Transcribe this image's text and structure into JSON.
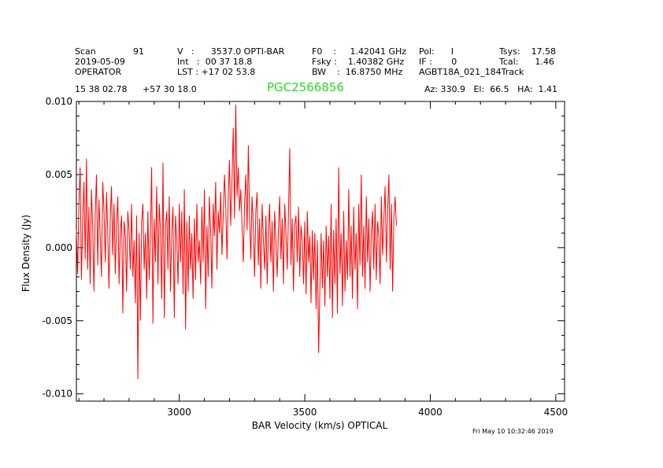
{
  "header": {
    "col1": [
      "Scan",
      "91",
      "2019-05-09",
      "OPERATOR"
    ],
    "col2": [
      "V   :      3537.0 OPTI-BAR",
      "Int   :  00 37 18.8",
      "LST : +17 02 53.8"
    ],
    "col3": [
      "F0    :     1.42041 GHz",
      "Fsky :    1.40382 GHz",
      "BW    :  16.8750 MHz"
    ],
    "col4": [
      "Pol:      I",
      "IF :       0",
      "AGBT18A_021_184Track"
    ],
    "col5": [
      "Tsys:    17.58",
      "Tcal:      1.46"
    ],
    "ra": "15 38 02.78",
    "dec": "+57 30 18.0",
    "object": "PGC2566856",
    "azel": "Az: 330.9   El:  66.5   HA:  1.41"
  },
  "timestamp": "Fri May 10 10:32:46 2019",
  "chart_data": {
    "type": "line",
    "xlabel": "BAR Velocity (km/s) OPTICAL",
    "ylabel": "Flux Density (Jy)",
    "xlim": [
      2590,
      4535
    ],
    "ylim": [
      -0.0105,
      0.01
    ],
    "xticks": [
      3000,
      3500,
      4000,
      4500
    ],
    "yticks": [
      -0.01,
      -0.005,
      0.0,
      0.005,
      0.01
    ],
    "ytick_labels": [
      "-0.010",
      "-0.005",
      "0.000",
      "0.005",
      "0.010"
    ],
    "line_color": "#ff0000",
    "series": [
      {
        "x_start": 2590,
        "x_step": 5,
        "values": [
          0.0012,
          -0.0018,
          0.0031,
          0.0055,
          -0.0022,
          0.0018,
          0.0045,
          -0.0008,
          0.0061,
          -0.0015,
          0.0028,
          -0.0025,
          0.004,
          0.0015,
          -0.003,
          0.0022,
          0.005,
          -0.0012,
          0.0033,
          0.0008,
          -0.002,
          0.0045,
          0.0025,
          -0.001,
          0.0038,
          0.0012,
          -0.0028,
          0.002,
          0.0042,
          -0.0005,
          0.003,
          -0.0018,
          0.0015,
          0.0035,
          -0.0025,
          0.001,
          0.0022,
          -0.0045,
          0.0018,
          0.0008,
          -0.003,
          0.0025,
          0.0012,
          -0.0015,
          0.003,
          -0.002,
          0.0005,
          -0.0038,
          0.0022,
          -0.009,
          0.001,
          -0.005,
          0.0018,
          0.003,
          -0.0015,
          0.001,
          -0.0035,
          0.0025,
          -0.0022,
          0.0008,
          0.0055,
          -0.0052,
          0.002,
          -0.001,
          0.0042,
          -0.0025,
          0.003,
          0.0012,
          -0.0035,
          0.0058,
          -0.0048,
          0.0015,
          0.0025,
          -0.0015,
          0.0035,
          -0.003,
          0.001,
          0.0028,
          -0.0048,
          0.0022,
          0.0005,
          -0.0025,
          0.003,
          -0.001,
          0.0025,
          -0.0032,
          0.004,
          -0.0056,
          0.0018,
          -0.003,
          0.0022,
          -0.0015,
          0.001,
          -0.0035,
          0.002,
          -0.0022,
          0.003,
          -0.001,
          0.0005,
          -0.0025,
          0.0028,
          -0.001,
          0.004,
          -0.0042,
          0.0015,
          -0.002,
          0.0035,
          0.0012,
          -0.0028,
          0.003,
          0.0008,
          0.0045,
          -0.0015,
          0.0025,
          0.001,
          0.0038,
          -0.0005,
          0.0022,
          0.005,
          0.0028,
          -0.0008,
          0.0035,
          0.006,
          0.0015,
          0.0045,
          0.0082,
          0.002,
          0.0098,
          0.0035,
          0.0055,
          0.0025,
          0.004,
          0.0015,
          -0.001,
          0.003,
          0.005,
          0.0012,
          0.007,
          0.0022,
          -0.0008,
          0.0035,
          0.0015,
          -0.002,
          0.0025,
          0.0038,
          -0.0012,
          0.002,
          -0.0028,
          0.003,
          0.0005,
          -0.0015,
          0.0022,
          -0.0025,
          0.0012,
          0.003,
          -0.001,
          0.0018,
          -0.003,
          0.0025,
          0.0005,
          -0.002,
          0.0012,
          0.0035,
          -0.0008,
          0.002,
          -0.0025,
          0.003,
          0.001,
          -0.0015,
          0.0025,
          0.0068,
          -0.0012,
          0.002,
          -0.003,
          0.0015,
          0.0022,
          -0.001,
          0.0028,
          -0.002,
          0.0015,
          0.0005,
          -0.0025,
          0.0018,
          -0.0032,
          0.0025,
          -0.001,
          0.0008,
          -0.0038,
          0.0012,
          -0.0022,
          0.001,
          -0.0042,
          0.0005,
          -0.0072,
          -0.003,
          0.001,
          -0.0028,
          0.0005,
          -0.004,
          0.0015,
          -0.002,
          0.0008,
          -0.0035,
          0.003,
          -0.0048,
          0.0012,
          -0.0025,
          0.002,
          -0.0045,
          0.0055,
          -0.0018,
          0.001,
          -0.004,
          0.0025,
          -0.003,
          0.0005,
          -0.0022,
          0.004,
          -0.002,
          0.0015,
          -0.0035,
          0.0028,
          -0.0015,
          0.001,
          -0.0042,
          0.003,
          -0.0012,
          0.005,
          -0.002,
          0.0015,
          -0.0028,
          0.0035,
          -0.001,
          0.002,
          -0.003,
          0.001,
          0.0025,
          -0.0015,
          0.003,
          -0.0022,
          0.0018,
          0.0008,
          -0.0025,
          0.0035,
          -0.0005,
          0.002,
          0.0042,
          -0.001,
          0.0025,
          0.005,
          -0.0015,
          0.003,
          -0.003,
          0.002,
          0.0035,
          0.0015
        ]
      }
    ]
  }
}
